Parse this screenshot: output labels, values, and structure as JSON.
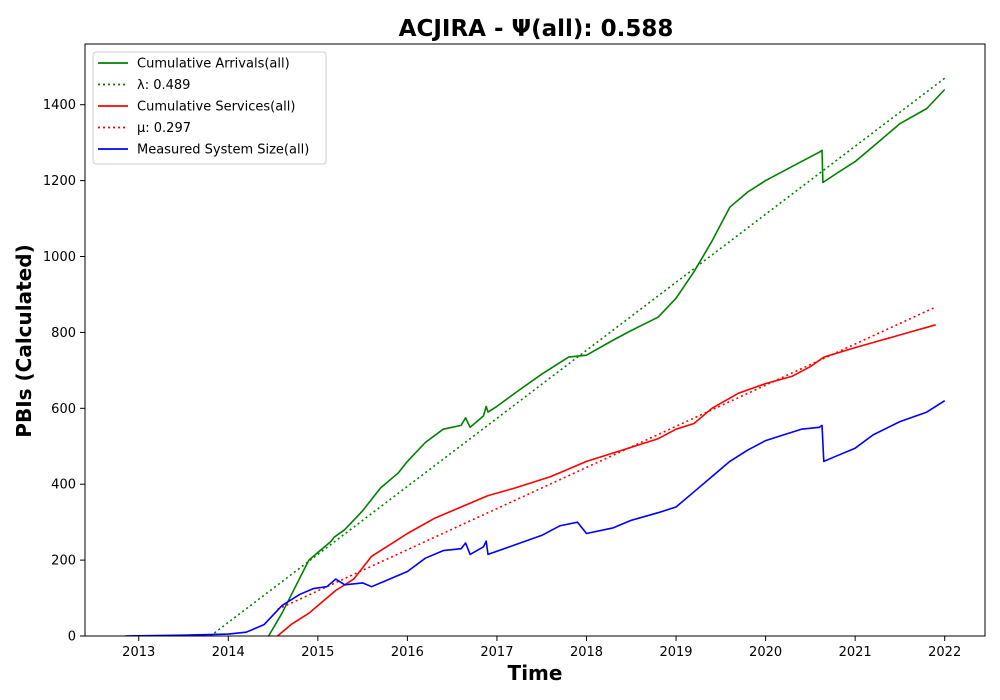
{
  "chart_data": {
    "type": "line",
    "title": "ACJIRA -  Ψ(all): 0.588",
    "xlabel": "Time",
    "ylabel": "PBIs (Calculated)",
    "xlim": [
      2012.4,
      2022.45
    ],
    "ylim": [
      0,
      1560
    ],
    "x_ticks": [
      2013,
      2014,
      2015,
      2016,
      2017,
      2018,
      2019,
      2020,
      2021,
      2022
    ],
    "x_tick_labels": [
      "2013",
      "2014",
      "2015",
      "2016",
      "2017",
      "2018",
      "2019",
      "2020",
      "2021",
      "2022"
    ],
    "y_ticks": [
      0,
      200,
      400,
      600,
      800,
      1000,
      1200,
      1400
    ],
    "y_tick_labels": [
      "0",
      "200",
      "400",
      "600",
      "800",
      "1000",
      "1200",
      "1400"
    ],
    "grid": false,
    "legend_position": "top-left",
    "series": [
      {
        "name": "Cumulative Arrivals(all)",
        "color": "#008000",
        "style": "solid",
        "x": [
          2014.45,
          2014.6,
          2014.75,
          2014.9,
          2015.0,
          2015.15,
          2015.18,
          2015.3,
          2015.5,
          2015.7,
          2015.9,
          2016.0,
          2016.2,
          2016.4,
          2016.6,
          2016.65,
          2016.7,
          2016.75,
          2016.85,
          2016.88,
          2016.9,
          2017.0,
          2017.2,
          2017.5,
          2017.8,
          2018.0,
          2018.3,
          2018.5,
          2018.8,
          2019.0,
          2019.2,
          2019.4,
          2019.6,
          2019.8,
          2020.0,
          2020.2,
          2020.4,
          2020.6,
          2020.63,
          2020.64,
          2020.8,
          2021.0,
          2021.2,
          2021.5,
          2021.8,
          2022.0
        ],
        "values": [
          0,
          60,
          130,
          200,
          220,
          250,
          260,
          280,
          330,
          390,
          430,
          460,
          510,
          545,
          555,
          575,
          550,
          560,
          580,
          605,
          590,
          605,
          640,
          690,
          735,
          740,
          780,
          805,
          840,
          890,
          960,
          1040,
          1130,
          1170,
          1200,
          1225,
          1250,
          1275,
          1280,
          1195,
          1220,
          1250,
          1290,
          1350,
          1390,
          1440
        ]
      },
      {
        "name": "λ: 0.489",
        "color": "#008000",
        "style": "dotted",
        "x": [
          2013.8,
          2022.0
        ],
        "values": [
          0,
          1470
        ]
      },
      {
        "name": "Cumulative Services(all)",
        "color": "#ff0000",
        "style": "solid",
        "x": [
          2014.55,
          2014.7,
          2014.9,
          2015.0,
          2015.2,
          2015.4,
          2015.6,
          2015.8,
          2016.0,
          2016.3,
          2016.6,
          2016.9,
          2017.2,
          2017.6,
          2018.0,
          2018.4,
          2018.8,
          2019.0,
          2019.2,
          2019.4,
          2019.7,
          2020.0,
          2020.3,
          2020.5,
          2020.65,
          2021.0,
          2021.3,
          2021.6,
          2021.9
        ],
        "values": [
          0,
          30,
          60,
          80,
          120,
          150,
          210,
          240,
          270,
          310,
          340,
          370,
          390,
          420,
          460,
          490,
          520,
          545,
          560,
          600,
          640,
          665,
          685,
          710,
          735,
          760,
          780,
          800,
          820
        ]
      },
      {
        "name": "μ: 0.297",
        "color": "#ff0000",
        "style": "dotted",
        "x": [
          2014.55,
          2021.9
        ],
        "values": [
          70,
          867
        ]
      },
      {
        "name": "Measured System Size(all)",
        "color": "#0000ff",
        "style": "solid",
        "x": [
          2012.85,
          2013.5,
          2014.0,
          2014.2,
          2014.4,
          2014.6,
          2014.8,
          2014.95,
          2015.1,
          2015.2,
          2015.3,
          2015.5,
          2015.6,
          2015.8,
          2016.0,
          2016.2,
          2016.4,
          2016.6,
          2016.65,
          2016.7,
          2016.85,
          2016.88,
          2016.9,
          2017.2,
          2017.5,
          2017.7,
          2017.9,
          2018.0,
          2018.3,
          2018.5,
          2018.8,
          2019.0,
          2019.2,
          2019.4,
          2019.6,
          2019.8,
          2020.0,
          2020.2,
          2020.4,
          2020.6,
          2020.63,
          2020.65,
          2020.8,
          2021.0,
          2021.2,
          2021.5,
          2021.8,
          2022.0
        ],
        "values": [
          0,
          2,
          5,
          10,
          30,
          80,
          110,
          125,
          130,
          150,
          135,
          140,
          130,
          150,
          170,
          205,
          225,
          230,
          245,
          215,
          235,
          250,
          215,
          240,
          265,
          290,
          300,
          270,
          285,
          305,
          325,
          340,
          380,
          420,
          460,
          490,
          515,
          530,
          545,
          550,
          555,
          460,
          475,
          495,
          530,
          565,
          590,
          620
        ]
      }
    ]
  }
}
